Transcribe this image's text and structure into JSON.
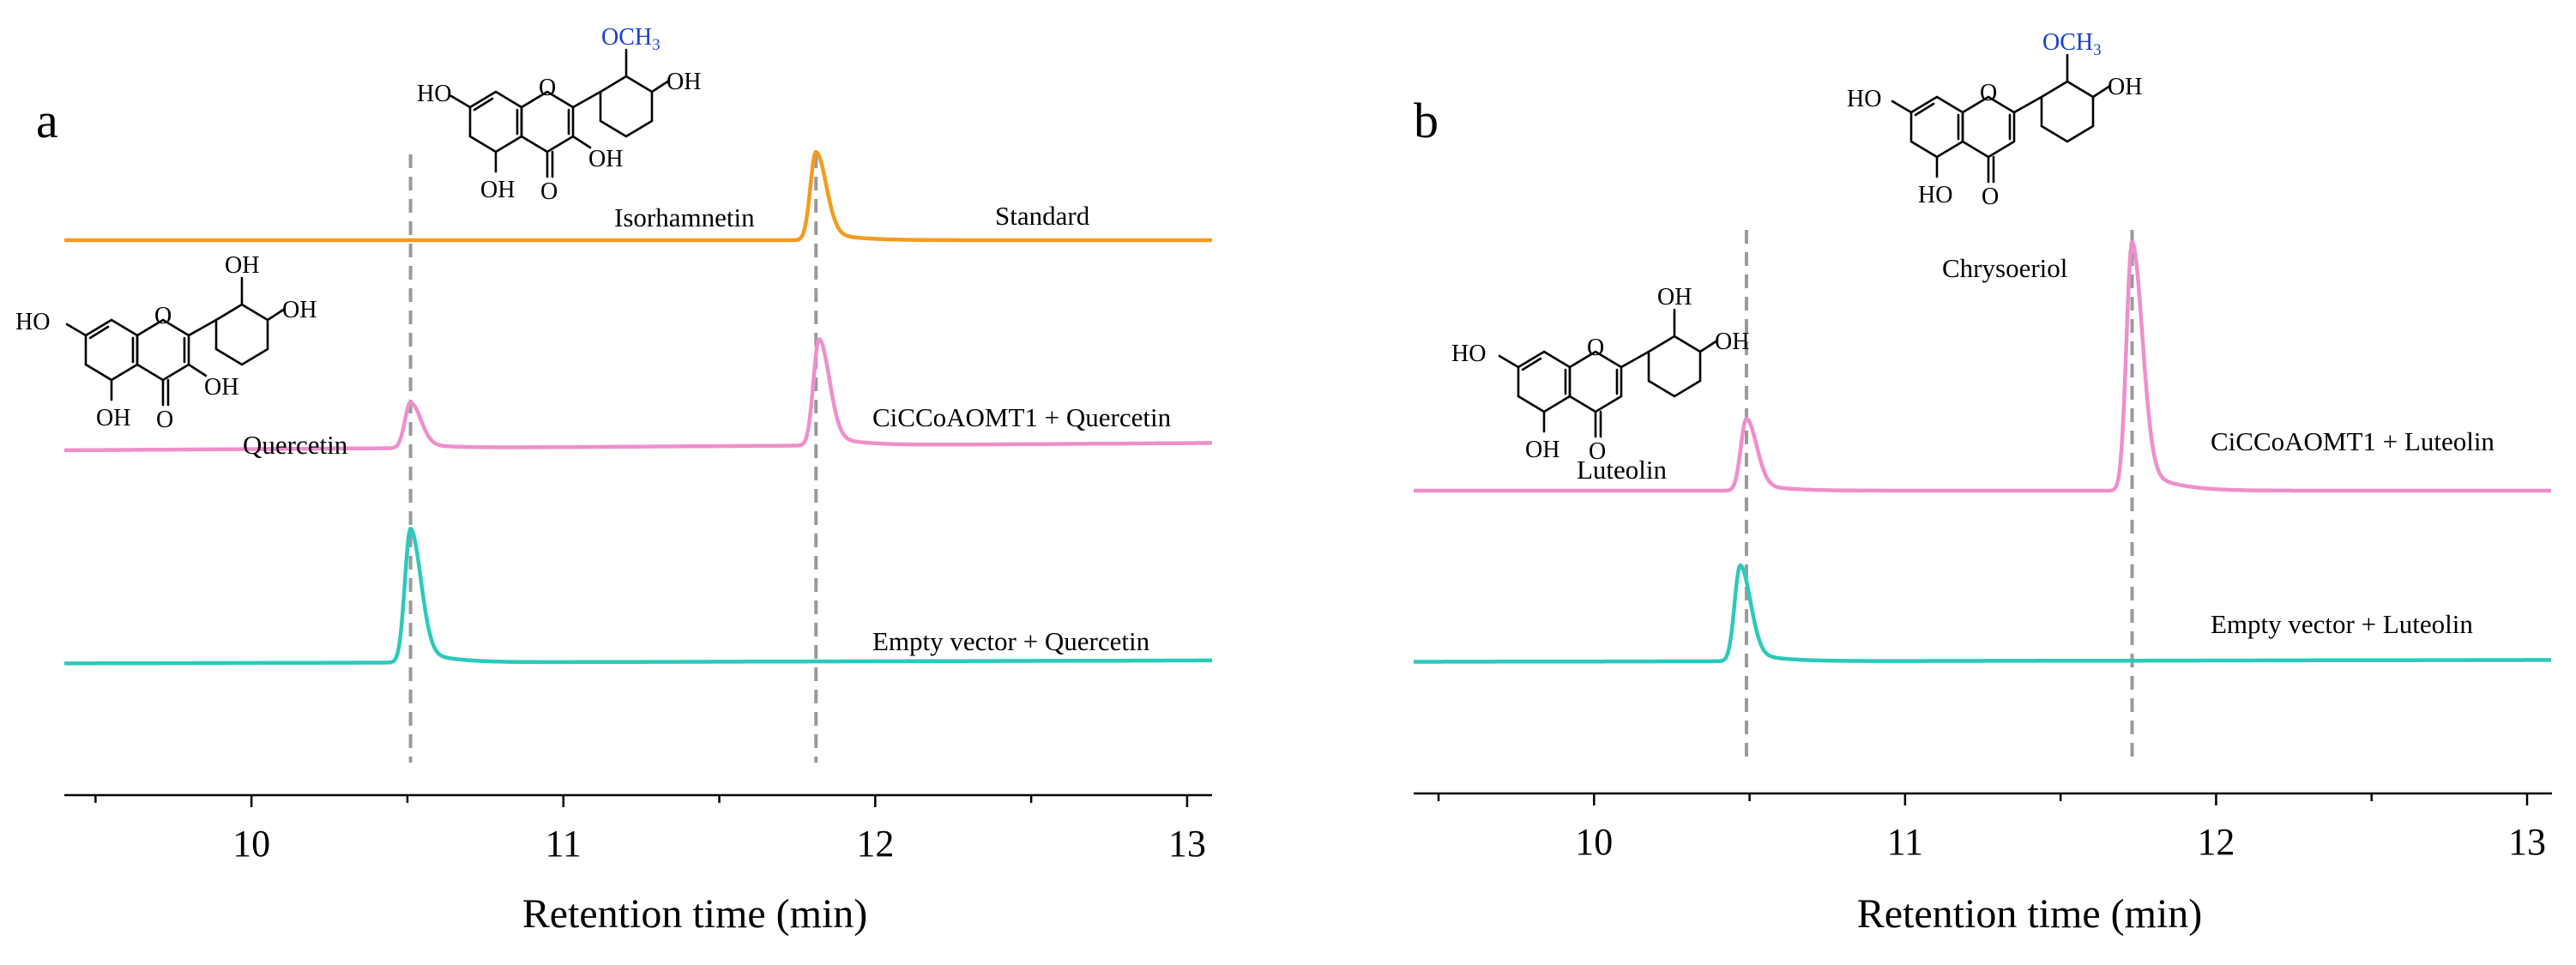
{
  "chart_data": [
    {
      "type": "line",
      "panel": "a",
      "xlabel": "Retention time (min)",
      "xlim": [
        9.4,
        13.08
      ],
      "xticks": [
        10,
        11,
        12,
        13
      ],
      "series": [
        {
          "name": "Standard",
          "color": "#F39C1F",
          "baseline": 0.0,
          "drift": 0.0,
          "peaks": [
            {
              "rt": 11.81,
              "height": 1.45
            }
          ]
        },
        {
          "name": "CiCCoAOMT1 + Quercetin",
          "color": "#EE8FCB",
          "baseline": -3.45,
          "drift": 0.12,
          "peaks": [
            {
              "rt": 10.51,
              "height": 0.75
            },
            {
              "rt": 11.82,
              "height": 1.75
            }
          ]
        },
        {
          "name": "Empty vector + Quercetin",
          "color": "#2CC9BC",
          "baseline": -6.95,
          "drift": 0.05,
          "peaks": [
            {
              "rt": 10.51,
              "height": 2.2
            }
          ]
        }
      ],
      "markers": [
        10.51,
        11.81
      ],
      "compounds": [
        {
          "name": "Isorhamnetin",
          "substituent": "OCH3",
          "sub_color": "#1A3FD0"
        },
        {
          "name": "Quercetin"
        }
      ]
    },
    {
      "type": "line",
      "panel": "b",
      "xlabel": "Retention time (min)",
      "xlim": [
        9.42,
        13.08
      ],
      "xticks": [
        10,
        11,
        12,
        13
      ],
      "series": [
        {
          "name": "CiCCoAOMT1 + Luteolin",
          "color": "#EE8FCB",
          "baseline": 0.0,
          "drift": 0.0,
          "peaks": [
            {
              "rt": 10.49,
              "height": 1.2
            },
            {
              "rt": 11.73,
              "height": 4.15
            }
          ]
        },
        {
          "name": "Empty vector + Luteolin",
          "color": "#2CC9BC",
          "baseline": -2.85,
          "drift": 0.03,
          "peaks": [
            {
              "rt": 10.47,
              "height": 1.6
            }
          ]
        }
      ],
      "markers": [
        10.49,
        11.73
      ],
      "compounds": [
        {
          "name": "Chrysoeriol",
          "substituent": "OCH3",
          "sub_color": "#1A3FD0"
        },
        {
          "name": "Luteolin"
        }
      ]
    }
  ],
  "molecule_atoms": {
    "ho": "HO",
    "oh": "OH",
    "o": "O",
    "och": "OCH",
    "sub3": "3"
  }
}
